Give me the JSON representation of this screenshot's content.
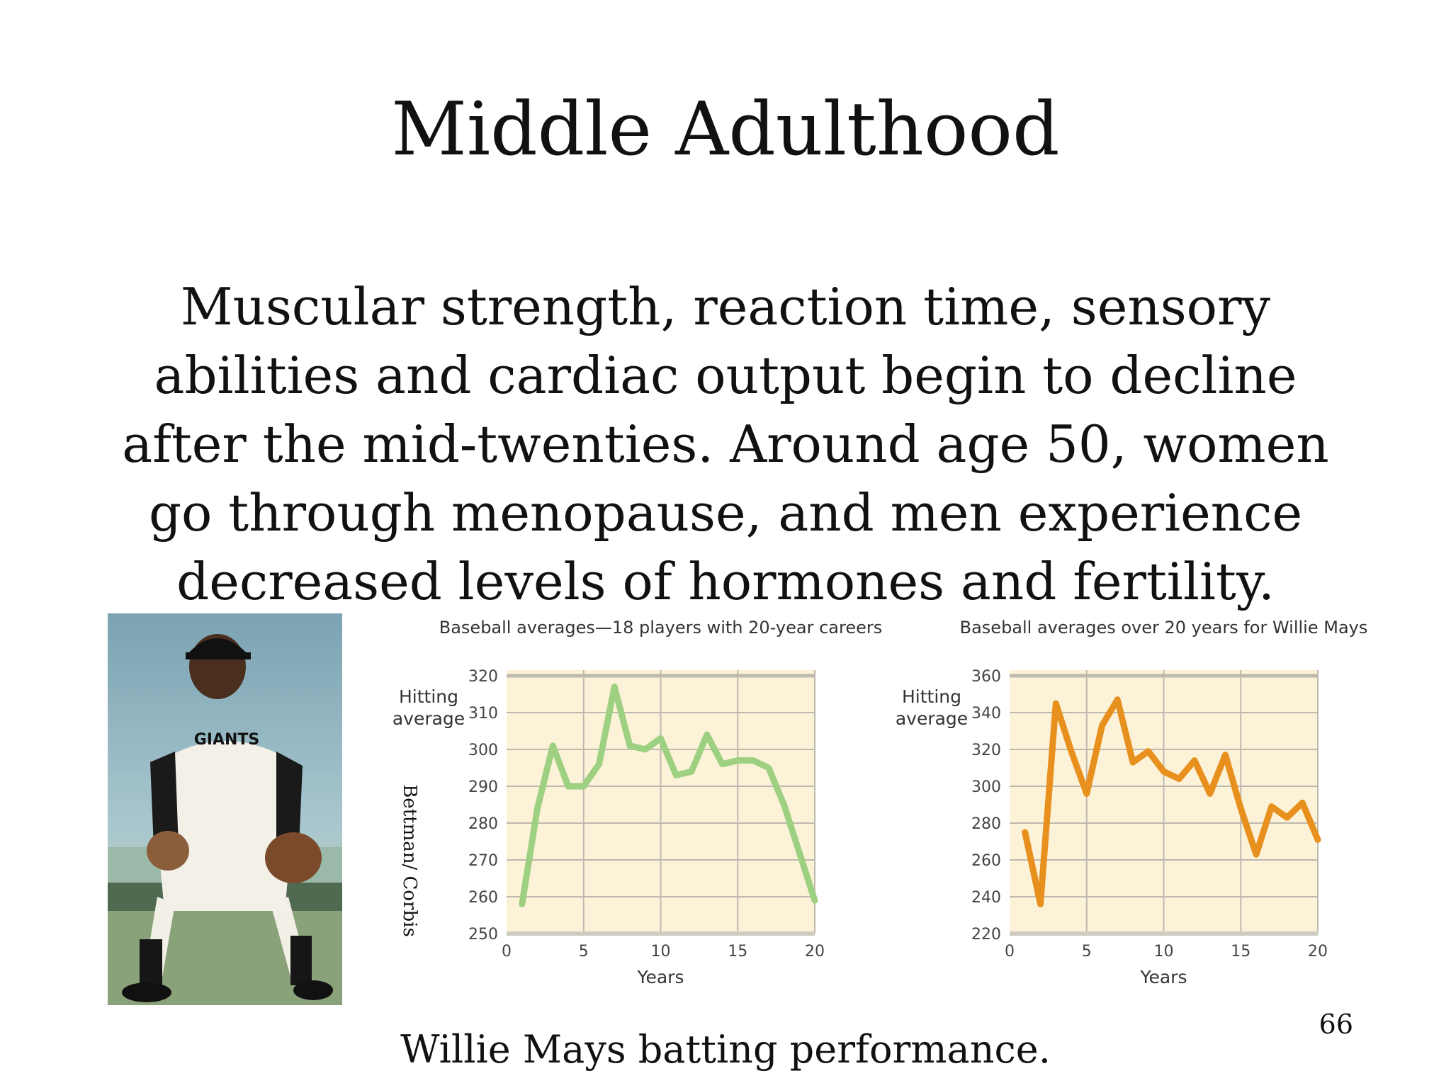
{
  "slide": {
    "title": "Middle Adulthood",
    "body": "Muscular strength, reaction time, sensory abilities and cardiac output begin to decline after the mid-twenties. Around age 50, women go through menopause, and men experience decreased levels of hormones and fertility.",
    "caption": "Willie Mays batting performance.",
    "page_number": "66"
  },
  "photo": {
    "credit": "Bettman/ Corbis",
    "jersey_text": "GIANTS"
  },
  "colors": {
    "chart_background": "#fcf2d8",
    "gridline": "#bdb9ae",
    "series_1": "#9dd080",
    "series_2": "#e8901e"
  },
  "chart_data": [
    {
      "type": "line",
      "title": "Baseball averages—18 players with 20-year careers",
      "xlabel": "Years",
      "ylabel": "Hitting average",
      "xlim": [
        0,
        20
      ],
      "ylim": [
        250,
        320
      ],
      "xticks": [
        0,
        5,
        10,
        15,
        20
      ],
      "yticks": [
        250,
        260,
        270,
        280,
        290,
        300,
        310,
        320
      ],
      "grid": true,
      "series": [
        {
          "x": [
            1,
            2,
            3,
            4,
            5,
            6,
            7,
            8,
            9,
            10,
            11,
            12,
            13,
            14,
            15,
            16,
            17,
            18,
            19,
            20
          ],
          "values": [
            258,
            284,
            301,
            290,
            290,
            296,
            317,
            301,
            300,
            303,
            293,
            294,
            304,
            296,
            297,
            297,
            295,
            285,
            272,
            259
          ]
        }
      ]
    },
    {
      "type": "line",
      "title": "Baseball averages over 20 years for Willie Mays",
      "xlabel": "Years",
      "ylabel": "Hitting average",
      "xlim": [
        0,
        20
      ],
      "ylim": [
        220,
        360
      ],
      "xticks": [
        0,
        5,
        10,
        15,
        20
      ],
      "yticks": [
        220,
        240,
        260,
        280,
        300,
        320,
        340,
        360
      ],
      "grid": true,
      "series": [
        {
          "x": [
            1,
            2,
            3,
            4,
            5,
            6,
            7,
            8,
            9,
            10,
            11,
            12,
            13,
            14,
            15,
            16,
            17,
            18,
            19,
            20
          ],
          "values": [
            275,
            236,
            345,
            319,
            296,
            333,
            347,
            313,
            319,
            308,
            304,
            314,
            296,
            317,
            288,
            263,
            289,
            283,
            291,
            271
          ]
        }
      ]
    }
  ]
}
